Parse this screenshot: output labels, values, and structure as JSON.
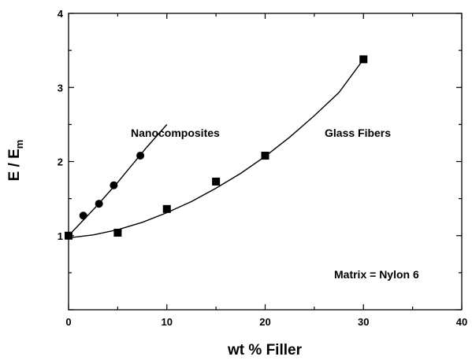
{
  "chart_data": {
    "type": "scatter",
    "title": "",
    "xlabel": "wt % Filler",
    "ylabel_main": "E / E",
    "ylabel_sub": "m",
    "xlim": [
      0,
      40
    ],
    "ylim": [
      0,
      4
    ],
    "xticks": [
      0,
      10,
      20,
      30,
      40
    ],
    "xtick_labels": [
      "0",
      "10",
      "20",
      "30",
      "40"
    ],
    "yticks": [
      1,
      2,
      3,
      4
    ],
    "ytick_labels": [
      "1",
      "2",
      "3",
      "4"
    ],
    "grid": false,
    "legend": "none",
    "series": [
      {
        "label": "Nanocomposites",
        "marker": "circle",
        "x": [
          0,
          1.5,
          3.1,
          4.6,
          7.3
        ],
        "y": [
          1.0,
          1.27,
          1.43,
          1.68,
          2.08
        ],
        "fit_x": [
          0,
          1,
          2,
          3,
          4,
          5,
          6,
          7,
          8,
          9,
          10
        ],
        "fit_y": [
          1.0,
          1.14,
          1.28,
          1.42,
          1.57,
          1.72,
          1.88,
          2.04,
          2.2,
          2.35,
          2.5
        ]
      },
      {
        "label": "Glass Fibers",
        "marker": "square",
        "x": [
          0,
          5,
          10,
          15,
          20,
          30
        ],
        "y": [
          1.0,
          1.04,
          1.36,
          1.73,
          2.08,
          3.38
        ],
        "fit_x": [
          0,
          2.5,
          5,
          7.5,
          10,
          12.5,
          15,
          17.5,
          20,
          22.5,
          25,
          27.5,
          30
        ],
        "fit_y": [
          0.97,
          1.01,
          1.08,
          1.18,
          1.31,
          1.46,
          1.64,
          1.84,
          2.07,
          2.33,
          2.62,
          2.93,
          3.38
        ]
      }
    ],
    "annotations": {
      "nano_label": "Nanocomposites",
      "glass_label": "Glass Fibers",
      "matrix_label": "Matrix = Nylon 6"
    },
    "colors": {
      "marks": "#000000",
      "background": "#ffffff"
    }
  }
}
